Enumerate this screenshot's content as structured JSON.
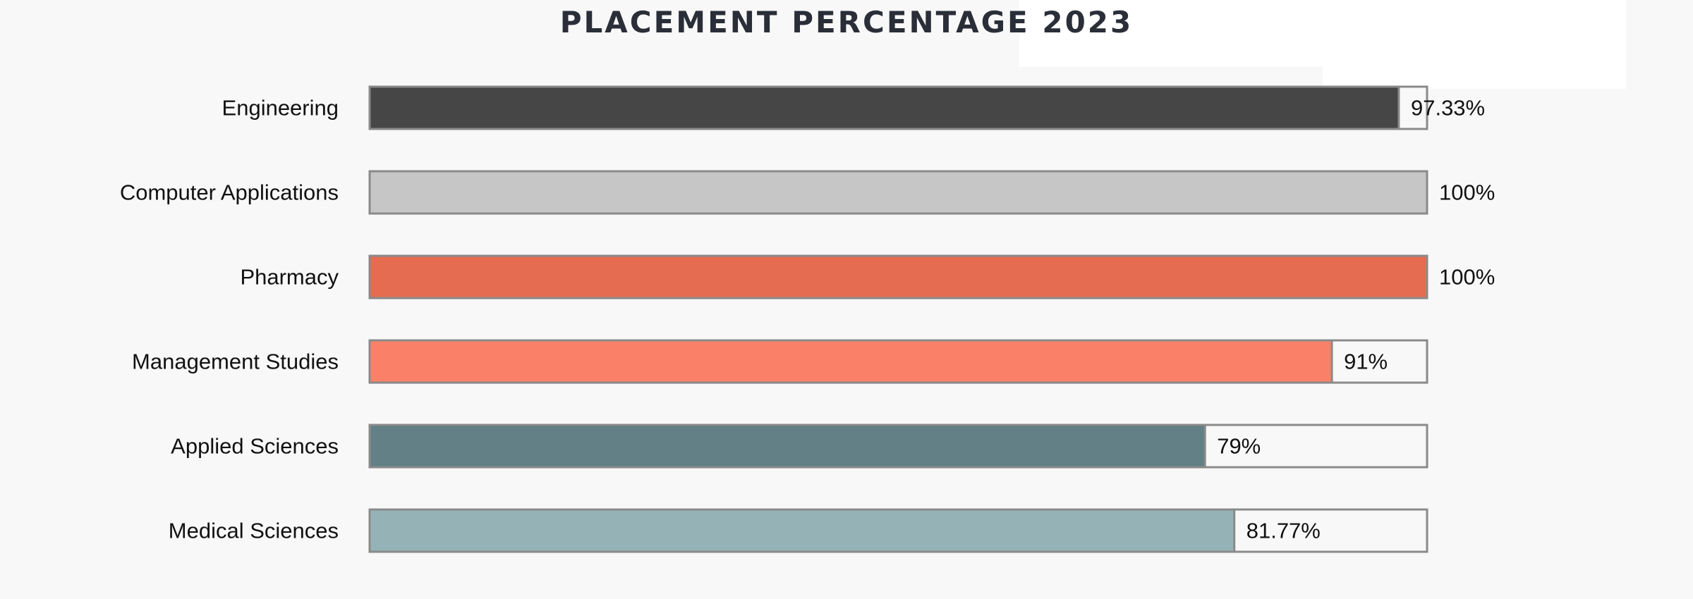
{
  "chart_data": {
    "type": "bar",
    "orientation": "horizontal",
    "title": "PLACEMENT PERCENTAGE 2023",
    "categories": [
      "Engineering",
      "Computer Applications",
      "Pharmacy",
      "Management Studies",
      "Applied Sciences",
      "Medical Sciences"
    ],
    "values": [
      97.33,
      100,
      100,
      91,
      79,
      81.77
    ],
    "value_labels": [
      "97.33%",
      "100%",
      "100%",
      "91%",
      "79%",
      "81.77%"
    ],
    "colors": [
      "#464646",
      "#c6c6c6",
      "#e56c50",
      "#fa8167",
      "#628085",
      "#95b3b7"
    ],
    "track_color": "#f8f8f8",
    "border_color": "#8a8a8a",
    "xlim": [
      0,
      100
    ],
    "grid": false,
    "legend": "none"
  }
}
